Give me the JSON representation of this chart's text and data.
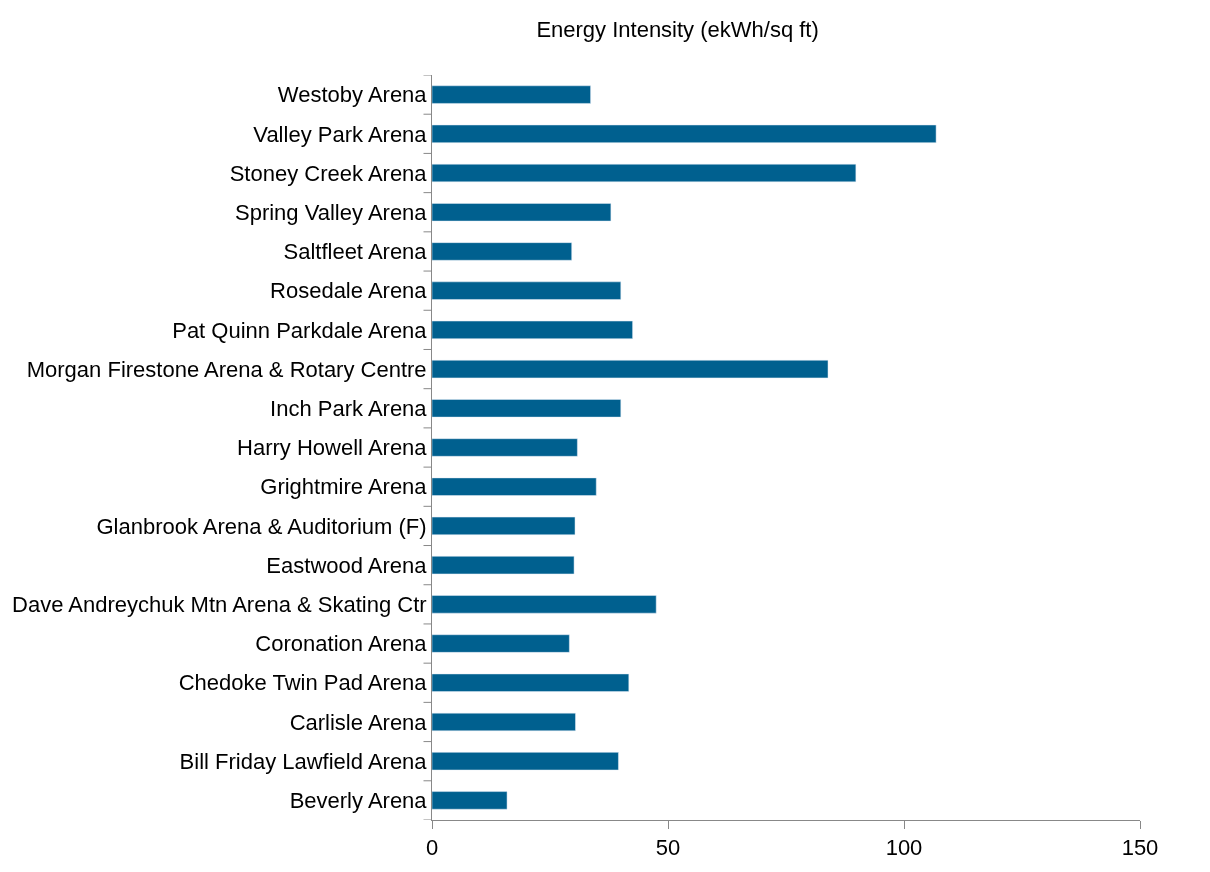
{
  "chart_data": {
    "type": "bar",
    "orientation": "horizontal",
    "title": "Energy Intensity (ekWh/sq ft)",
    "categories": [
      "Westoby Arena",
      "Valley Park Arena",
      "Stoney Creek Arena",
      "Spring Valley Arena",
      "Saltfleet Arena",
      "Rosedale Arena",
      "Pat Quinn Parkdale Arena",
      "Morgan Firestone Arena & Rotary Centre",
      "Inch Park Arena",
      "Harry Howell Arena",
      "Grightmire Arena",
      "Glanbrook Arena & Auditorium (F)",
      "Eastwood Arena",
      "Dave Andreychuk Mtn Arena & Skating Ctr",
      "Coronation Arena",
      "Chedoke Twin Pad Arena",
      "Carlisle Arena",
      "Bill Friday Lawfield Arena",
      "Beverly Arena"
    ],
    "values": [
      33.6,
      106.8,
      89.8,
      37.9,
      29.6,
      40.0,
      42.5,
      83.9,
      40.0,
      30.8,
      34.8,
      30.3,
      30.1,
      47.5,
      29.1,
      41.7,
      30.4,
      39.5,
      15.9
    ],
    "color": "#00608f",
    "xlim": [
      0,
      150
    ],
    "xticks": [
      0,
      50,
      100,
      150
    ]
  }
}
